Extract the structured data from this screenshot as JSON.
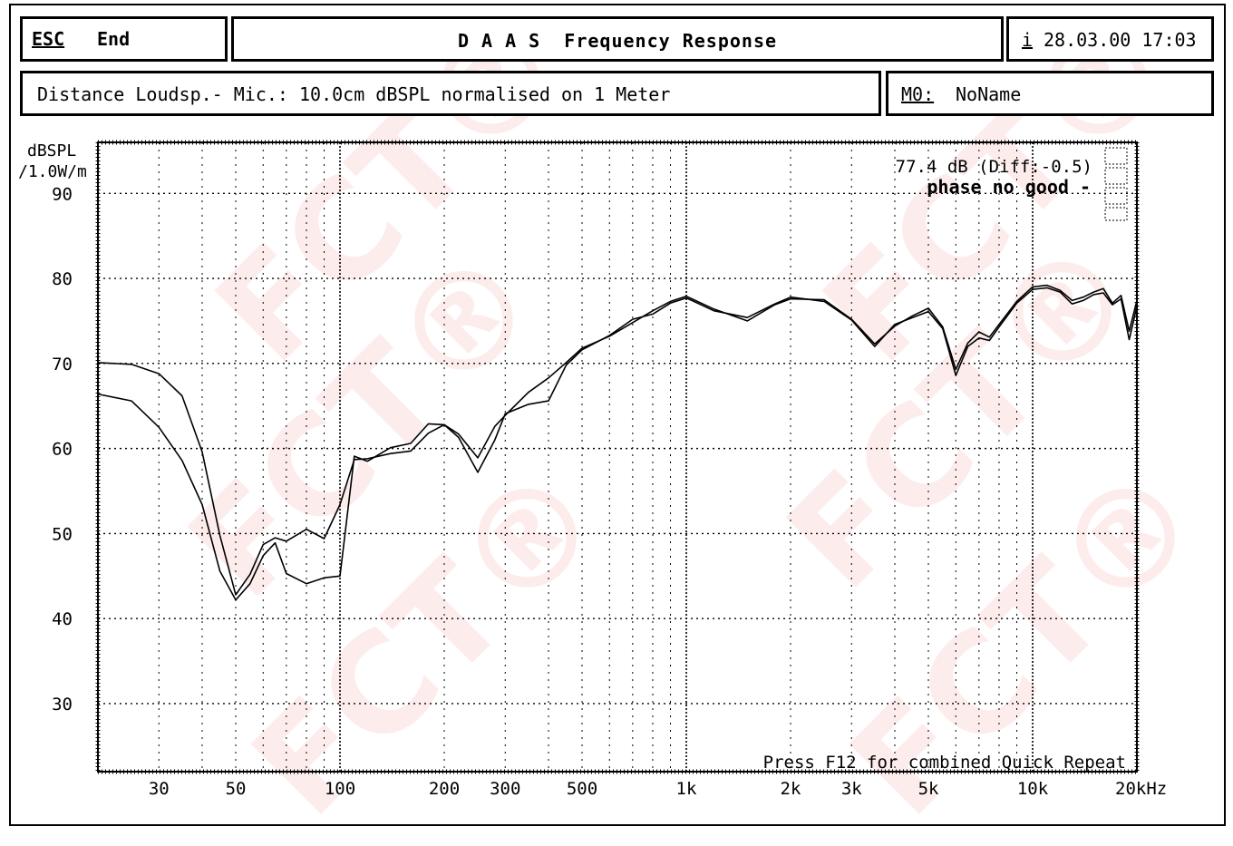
{
  "header": {
    "esc_label": "ESC",
    "end_label": "End",
    "title": "D A A S  Frequency Response",
    "info_label": "i",
    "datetime": "28.03.00 17:03"
  },
  "subheader": {
    "distance_text": "Distance Loudsp.- Mic.: 10.0cm dBSPL normalised on 1 Meter",
    "memory_label": "M0:",
    "memory_name": "NoName"
  },
  "watermark": "FCT®",
  "chart_data": {
    "type": "line",
    "ylabel": "dBSPL",
    "ylabel_sub": "/1.0W/m",
    "xunit": "Hz",
    "xscale": "log",
    "xlim": [
      20,
      20000
    ],
    "ylim": [
      22,
      96
    ],
    "grid": true,
    "yticks": [
      30,
      40,
      50,
      60,
      70,
      80,
      90
    ],
    "xticks": [
      {
        "value": 30,
        "label": "30"
      },
      {
        "value": 50,
        "label": "50"
      },
      {
        "value": 100,
        "label": "100"
      },
      {
        "value": 200,
        "label": "200"
      },
      {
        "value": 300,
        "label": "300"
      },
      {
        "value": 500,
        "label": "500"
      },
      {
        "value": 1000,
        "label": "1k"
      },
      {
        "value": 2000,
        "label": "2k"
      },
      {
        "value": 3000,
        "label": "3k"
      },
      {
        "value": 5000,
        "label": "5k"
      },
      {
        "value": 10000,
        "label": "10k"
      },
      {
        "value": 20000,
        "label": "20kHz"
      }
    ],
    "annotation_level": "77.4 dB (Diff:-0.5)",
    "annotation_phase": "phase no good -",
    "footer_hint": "Press F12 for combined Quick Repeat",
    "series": [
      {
        "x": [
          20,
          25,
          30,
          35,
          40,
          45,
          50,
          55,
          60,
          65,
          70,
          80,
          90,
          100,
          110,
          120,
          140,
          160,
          180,
          200,
          220,
          250,
          280,
          300,
          350,
          400,
          450,
          500,
          600,
          700,
          800,
          900,
          1000,
          1200,
          1500,
          1800,
          2000,
          2500,
          3000,
          3500,
          4000,
          4500,
          5000,
          5500,
          6000,
          6500,
          7000,
          7500,
          8000,
          9000,
          10000,
          11000,
          12000,
          13000,
          14000,
          15000,
          16000,
          17000,
          18000,
          19000,
          20000
        ],
        "y": [
          70.1,
          69.9,
          68.8,
          66.2,
          59.6,
          49.8,
          42.8,
          45.2,
          48.7,
          49.5,
          49.1,
          50.5,
          49.4,
          53.4,
          58.7,
          58.8,
          59.4,
          59.7,
          61.8,
          62.8,
          61.7,
          58.9,
          62.6,
          63.9,
          66.6,
          68.3,
          70.1,
          71.8,
          73.2,
          74.8,
          76.2,
          77.3,
          77.9,
          76.4,
          75.0,
          76.9,
          77.6,
          77.5,
          75.2,
          72.3,
          74.4,
          75.6,
          76.5,
          74.3,
          69.3,
          72.4,
          73.7,
          73.1,
          74.6,
          77.3,
          79.0,
          79.2,
          78.6,
          77.4,
          77.8,
          78.4,
          78.8,
          77.1,
          78.0,
          73.8,
          77.4
        ]
      },
      {
        "x": [
          20,
          25,
          30,
          35,
          40,
          45,
          50,
          55,
          60,
          65,
          70,
          80,
          90,
          100,
          110,
          120,
          140,
          160,
          180,
          200,
          220,
          250,
          280,
          300,
          350,
          400,
          450,
          500,
          600,
          700,
          800,
          900,
          1000,
          1200,
          1500,
          1800,
          2000,
          2500,
          3000,
          3500,
          4000,
          4500,
          5000,
          5500,
          6000,
          6500,
          7000,
          7500,
          8000,
          9000,
          10000,
          11000,
          12000,
          13000,
          14000,
          15000,
          16000,
          17000,
          18000,
          19000,
          20000
        ],
        "y": [
          66.4,
          65.6,
          62.5,
          58.6,
          53.4,
          45.6,
          42.2,
          44.1,
          47.4,
          48.9,
          45.3,
          44.1,
          44.8,
          45.0,
          59.1,
          58.5,
          60.1,
          60.6,
          62.9,
          62.8,
          61.3,
          57.2,
          61.0,
          64.1,
          65.2,
          65.6,
          69.8,
          71.6,
          73.3,
          75.2,
          75.8,
          77.1,
          77.7,
          76.2,
          75.4,
          77.0,
          77.8,
          77.3,
          75.1,
          72.0,
          74.6,
          75.4,
          76.1,
          74.1,
          68.6,
          72.0,
          73.0,
          72.7,
          74.3,
          77.1,
          78.7,
          78.9,
          78.4,
          77.0,
          77.4,
          78.1,
          78.3,
          76.9,
          77.6,
          72.8,
          76.7
        ]
      }
    ]
  }
}
